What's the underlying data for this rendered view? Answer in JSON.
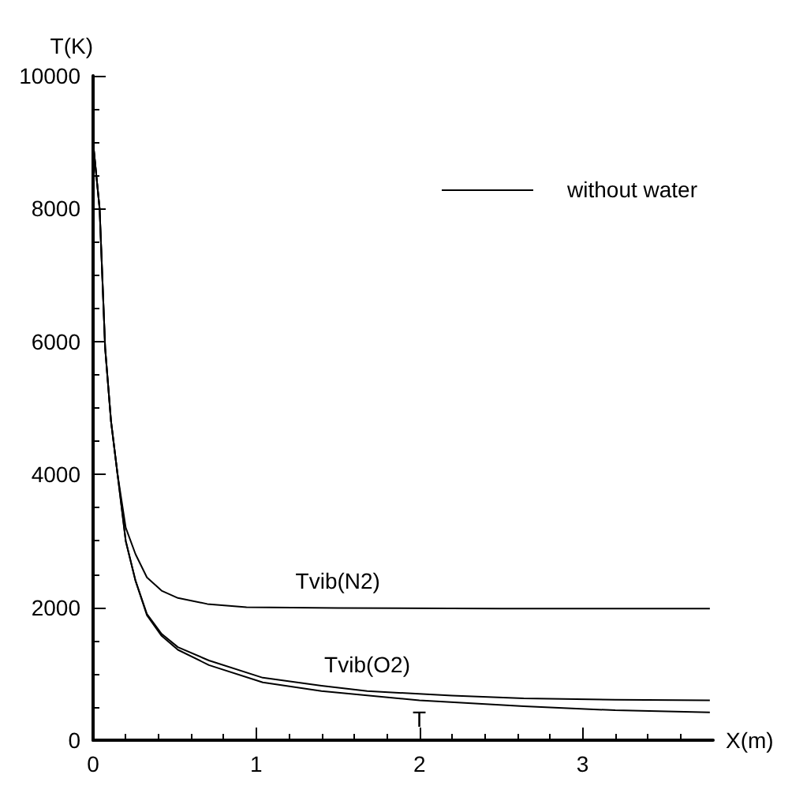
{
  "chart_data": {
    "type": "line",
    "xlabel": "X(m)",
    "ylabel": "T(K)",
    "annotations": [
      "without water"
    ],
    "grid": false,
    "marker": "none",
    "line_style": "solid",
    "xlim": [
      0,
      3.8
    ],
    "xticks": [
      0,
      1,
      2,
      3
    ],
    "ylim": [
      0,
      10000
    ],
    "yticks": [
      0,
      2000,
      4000,
      6000,
      8000,
      10000
    ],
    "series": [
      {
        "name": "Tvib(N2)",
        "color": "#000000",
        "x": [
          0,
          0.04,
          0.074,
          0.11,
          0.15,
          0.2,
          0.26,
          0.33,
          0.42,
          0.52,
          0.7,
          0.94,
          1.5,
          2.5,
          3.78
        ],
        "values": [
          9000,
          8000,
          5900,
          4800,
          4000,
          3200,
          2800,
          2450,
          2250,
          2140,
          2050,
          2000,
          1990,
          1980,
          1980
        ]
      },
      {
        "name": "Tvib(O2)",
        "color": "#000000",
        "x": [
          0,
          0.04,
          0.074,
          0.11,
          0.15,
          0.2,
          0.26,
          0.33,
          0.42,
          0.52,
          0.71,
          1.04,
          1.4,
          1.68,
          2.2,
          2.64,
          3.2,
          3.78
        ],
        "values": [
          9000,
          8000,
          5900,
          4800,
          4000,
          3000,
          2400,
          1900,
          1600,
          1400,
          1200,
          940,
          820,
          740,
          670,
          630,
          610,
          600
        ]
      },
      {
        "name": "T",
        "color": "#000000",
        "x": [
          0,
          0.04,
          0.074,
          0.11,
          0.15,
          0.2,
          0.26,
          0.33,
          0.42,
          0.52,
          0.71,
          1.04,
          1.4,
          2.0,
          2.64,
          3.2,
          3.78
        ],
        "values": [
          9000,
          8000,
          5900,
          4800,
          4000,
          3000,
          2400,
          1880,
          1570,
          1360,
          1130,
          870,
          740,
          600,
          510,
          450,
          420
        ]
      }
    ]
  }
}
